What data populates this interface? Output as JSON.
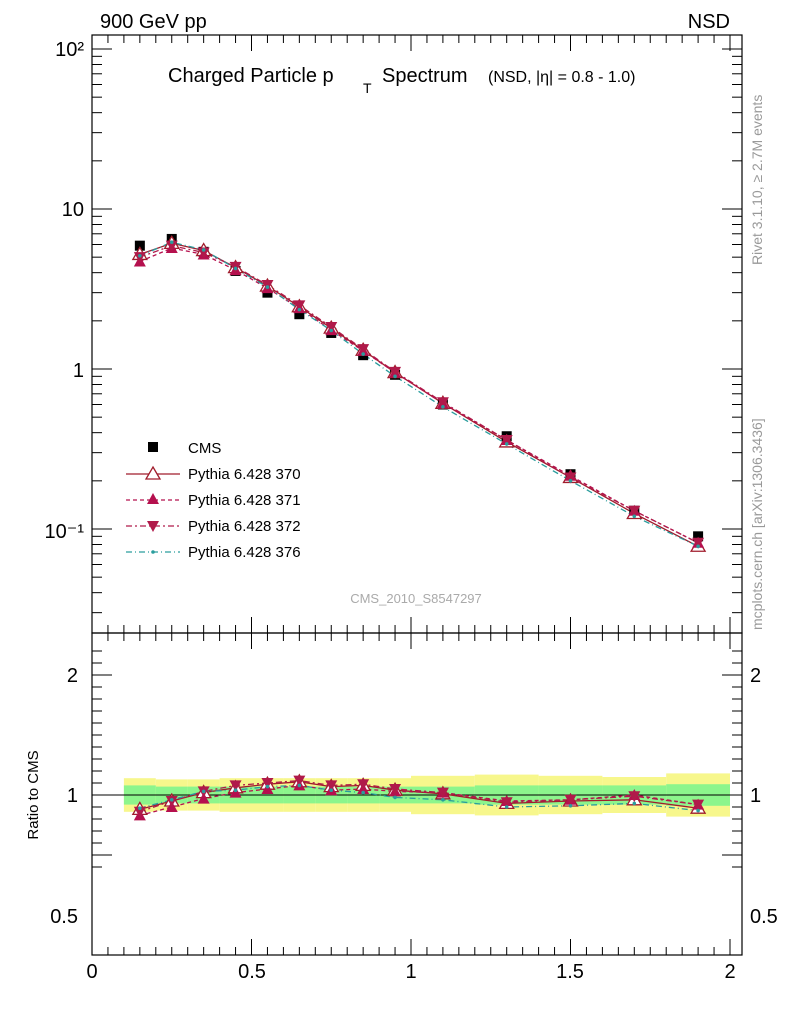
{
  "header": {
    "energy": "900 GeV pp",
    "process": "NSD"
  },
  "title": {
    "main": "Charged Particle p",
    "sub": "T",
    "rest": "Spectrum",
    "small": "(NSD, |η| = 0.8 - 1.0)"
  },
  "side_labels": {
    "rivet": "Rivet 3.1.10, ≥ 2.7M events",
    "mcplots": "mcplots.cern.ch [arXiv:1306.3436]"
  },
  "watermark": "CMS_2010_S8547297",
  "colors": {
    "cms": "#000000",
    "p370": "#a01c2c",
    "p371": "#b5104e",
    "p372": "#b01a4a",
    "p376": "#2a9d9d",
    "band_inner": "#8cf58c",
    "band_outer": "#f7f78c"
  },
  "chart_data": [
    {
      "type": "line",
      "panel": "main",
      "y_scale": "log",
      "xlim": [
        0,
        2
      ],
      "ylim": [
        0.025,
        120
      ],
      "y_tick_labels": [
        "10⁻¹",
        "1",
        "10",
        "10²"
      ],
      "legend_position": "lower-left",
      "series": [
        {
          "name": "CMS",
          "style": "marker-square",
          "x": [
            0.15,
            0.25,
            0.35,
            0.45,
            0.55,
            0.65,
            0.75,
            0.85,
            0.95,
            1.1,
            1.3,
            1.5,
            1.7,
            1.9
          ],
          "y": [
            5.9,
            6.5,
            5.4,
            4.1,
            3.0,
            2.2,
            1.68,
            1.22,
            0.92,
            0.6,
            0.38,
            0.22,
            0.13,
            0.09
          ]
        },
        {
          "name": "Pythia 6.428 370",
          "style": "solid-open-triangle",
          "x": [
            0.15,
            0.25,
            0.35,
            0.45,
            0.55,
            0.65,
            0.75,
            0.85,
            0.95,
            1.1,
            1.3,
            1.5,
            1.7,
            1.9
          ],
          "y": [
            5.2,
            6.1,
            5.5,
            4.3,
            3.3,
            2.45,
            1.8,
            1.31,
            0.95,
            0.61,
            0.35,
            0.21,
            0.125,
            0.078
          ]
        },
        {
          "name": "Pythia 6.428 371",
          "style": "dashed-filled-triangle",
          "x": [
            0.15,
            0.25,
            0.35,
            0.45,
            0.55,
            0.65,
            0.75,
            0.85,
            0.95,
            1.1,
            1.3,
            1.5,
            1.7,
            1.9
          ],
          "y": [
            4.7,
            5.7,
            5.2,
            4.15,
            3.2,
            2.4,
            1.75,
            1.3,
            0.95,
            0.61,
            0.36,
            0.215,
            0.13,
            0.082
          ]
        },
        {
          "name": "Pythia 6.428 372",
          "style": "dashdot-filled-inverted-triangle",
          "x": [
            0.15,
            0.25,
            0.35,
            0.45,
            0.55,
            0.65,
            0.75,
            0.85,
            0.95,
            1.1,
            1.3,
            1.5,
            1.7,
            1.9
          ],
          "y": [
            5.0,
            5.9,
            5.35,
            4.35,
            3.35,
            2.5,
            1.83,
            1.33,
            0.96,
            0.62,
            0.36,
            0.21,
            0.13,
            0.082
          ]
        },
        {
          "name": "Pythia 6.428 376",
          "style": "dashdot-small-dots",
          "x": [
            0.15,
            0.25,
            0.35,
            0.45,
            0.55,
            0.65,
            0.75,
            0.85,
            0.95,
            1.1,
            1.3,
            1.5,
            1.7,
            1.9
          ],
          "y": [
            5.1,
            6.2,
            5.55,
            4.25,
            3.25,
            2.35,
            1.74,
            1.24,
            0.9,
            0.58,
            0.34,
            0.2,
            0.12,
            0.078
          ]
        }
      ]
    },
    {
      "type": "line",
      "panel": "ratio",
      "ylabel": "Ratio to CMS",
      "xlim": [
        0,
        2
      ],
      "ylim": [
        0.35,
        2.25
      ],
      "x_tick_labels": [
        "0",
        "0.5",
        "1",
        "1.5",
        "2"
      ],
      "y_tick_labels": [
        "0.5",
        "1",
        "2"
      ],
      "bands": {
        "x_edges": [
          0.1,
          0.2,
          0.3,
          0.4,
          0.5,
          0.6,
          0.7,
          0.8,
          0.9,
          1.0,
          1.2,
          1.4,
          1.6,
          1.8,
          2.0
        ],
        "inner_low": [
          0.92,
          0.93,
          0.93,
          0.93,
          0.93,
          0.93,
          0.93,
          0.93,
          0.93,
          0.93,
          0.92,
          0.92,
          0.92,
          0.91
        ],
        "inner_high": [
          1.08,
          1.07,
          1.07,
          1.07,
          1.07,
          1.07,
          1.07,
          1.07,
          1.07,
          1.07,
          1.08,
          1.08,
          1.08,
          1.09
        ],
        "outer_low": [
          0.86,
          0.87,
          0.87,
          0.86,
          0.86,
          0.86,
          0.86,
          0.86,
          0.86,
          0.84,
          0.83,
          0.84,
          0.85,
          0.82
        ],
        "outer_high": [
          1.14,
          1.13,
          1.13,
          1.14,
          1.14,
          1.14,
          1.14,
          1.14,
          1.14,
          1.16,
          1.17,
          1.16,
          1.15,
          1.18
        ]
      },
      "series": [
        {
          "name": "Pythia 6.428 370",
          "x": [
            0.15,
            0.25,
            0.35,
            0.45,
            0.55,
            0.65,
            0.75,
            0.85,
            0.95,
            1.1,
            1.3,
            1.5,
            1.7,
            1.9
          ],
          "y": [
            0.88,
            0.95,
            1.02,
            1.06,
            1.09,
            1.11,
            1.07,
            1.08,
            1.04,
            1.01,
            0.93,
            0.95,
            0.96,
            0.89
          ]
        },
        {
          "name": "Pythia 6.428 371",
          "x": [
            0.15,
            0.25,
            0.35,
            0.45,
            0.55,
            0.65,
            0.75,
            0.85,
            0.95,
            1.1,
            1.3,
            1.5,
            1.7,
            1.9
          ],
          "y": [
            0.83,
            0.9,
            0.97,
            1.02,
            1.05,
            1.08,
            1.04,
            1.05,
            1.03,
            1.02,
            0.95,
            0.96,
            1.0,
            0.92
          ]
        },
        {
          "name": "Pythia 6.428 372",
          "x": [
            0.15,
            0.25,
            0.35,
            0.45,
            0.55,
            0.65,
            0.75,
            0.85,
            0.95,
            1.1,
            1.3,
            1.5,
            1.7,
            1.9
          ],
          "y": [
            0.86,
            0.95,
            1.03,
            1.08,
            1.1,
            1.12,
            1.08,
            1.09,
            1.05,
            1.02,
            0.94,
            0.96,
            0.99,
            0.92
          ]
        },
        {
          "name": "Pythia 6.428 376",
          "x": [
            0.15,
            0.25,
            0.35,
            0.45,
            0.55,
            0.65,
            0.75,
            0.85,
            0.95,
            1.1,
            1.3,
            1.5,
            1.7,
            1.9
          ],
          "y": [
            0.89,
            0.96,
            1.03,
            1.04,
            1.07,
            1.08,
            1.04,
            1.02,
            0.98,
            0.96,
            0.9,
            0.91,
            0.93,
            0.87
          ]
        }
      ]
    }
  ]
}
